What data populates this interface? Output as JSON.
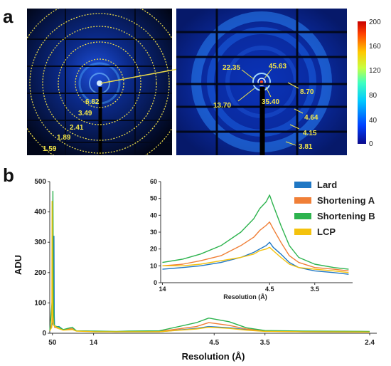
{
  "panel_a": {
    "letter": "a",
    "left_image": {
      "ring_labels": [
        "6.82",
        "3.49",
        "2.41",
        "1.89",
        "1.59"
      ]
    },
    "right_image": {
      "peak_labels": [
        "22.35",
        "45.63",
        "13.70",
        "35.40",
        "8.70",
        "4.64",
        "4.15",
        "3.81"
      ]
    },
    "colorbar": {
      "ticks": [
        "200",
        "160",
        "120",
        "80",
        "40",
        "0"
      ],
      "colors": [
        "#0a0a8c",
        "#0040ff",
        "#00c8ff",
        "#40ffc0",
        "#c8ff40",
        "#ffc800",
        "#ff4000",
        "#c80000"
      ]
    }
  },
  "panel_b": {
    "letter": "b"
  },
  "chart_data": [
    {
      "type": "line",
      "xlabel": "Resolution (Å)",
      "ylabel": "ADU",
      "x_axis_note": "reciprocal resolution axis; tick labels in Å",
      "xticks": [
        "50",
        "14",
        "4.5",
        "3.5",
        "2.4"
      ],
      "yticks": [
        "0",
        "100",
        "200",
        "300",
        "400",
        "500"
      ],
      "ylim": [
        0,
        500
      ],
      "legend_position": "top-right",
      "series": [
        {
          "name": "Lard",
          "color": "#1f77c4",
          "x": [
            60,
            50,
            45.6,
            45,
            44,
            35.4,
            30,
            22.35,
            20,
            13.7,
            10,
            8.7,
            6.5,
            5,
            4.64,
            4.15,
            3.81,
            3.5,
            3,
            2.4
          ],
          "y": [
            8,
            30,
            320,
            60,
            20,
            22,
            12,
            15,
            8,
            6,
            5,
            5,
            5,
            16,
            22,
            18,
            12,
            7,
            5,
            4
          ]
        },
        {
          "name": "Shortening A",
          "color": "#f07f37",
          "x": [
            60,
            50,
            49,
            48,
            45.6,
            44,
            35.4,
            30,
            22.35,
            20,
            13.7,
            10,
            8.7,
            6.5,
            5,
            4.64,
            4.15,
            3.81,
            3.5,
            3,
            2.4
          ],
          "y": [
            8,
            40,
            150,
            60,
            30,
            20,
            15,
            12,
            15,
            8,
            6,
            5,
            6,
            6,
            22,
            35,
            26,
            14,
            8,
            6,
            5
          ]
        },
        {
          "name": "Shortening B",
          "color": "#2db34e",
          "x": [
            60,
            50,
            48.5,
            47,
            45.6,
            45,
            35.4,
            30,
            22.35,
            20,
            13.7,
            10,
            8.7,
            6.5,
            5,
            4.64,
            4.15,
            3.81,
            3.5,
            3,
            2.4
          ],
          "y": [
            8,
            120,
            468,
            110,
            40,
            25,
            20,
            12,
            20,
            8,
            7,
            6,
            7,
            8,
            35,
            50,
            38,
            18,
            9,
            7,
            6
          ]
        },
        {
          "name": "LCP",
          "color": "#f4c20d",
          "x": [
            60,
            52,
            51,
            50,
            49,
            47,
            45.6,
            35.4,
            30,
            22.35,
            20,
            13.7,
            10,
            8.7,
            6.5,
            5,
            4.64,
            4.15,
            3.81,
            3.5,
            3,
            2.4
          ],
          "y": [
            8,
            20,
            435,
            200,
            60,
            30,
            25,
            15,
            10,
            12,
            7,
            5,
            5,
            5,
            5,
            14,
            20,
            16,
            10,
            6,
            5,
            4
          ]
        }
      ]
    },
    {
      "type": "line",
      "xlabel": "Resolution (Å)",
      "ylabel": "",
      "x_axis_note": "reciprocal resolution axis; tick labels in Å",
      "xticks": [
        "14",
        "4.5",
        "3.5"
      ],
      "yticks": [
        "0",
        "10",
        "20",
        "30",
        "40",
        "50",
        "60"
      ],
      "ylim": [
        0,
        60
      ],
      "series": [
        {
          "name": "Lard",
          "color": "#1f77c4",
          "x": [
            14,
            10,
            8,
            6.5,
            5.5,
            5,
            4.8,
            4.6,
            4.5,
            4.4,
            4.2,
            4.0,
            3.8,
            3.5,
            3.2,
            3.0
          ],
          "y": [
            8,
            9,
            10,
            12,
            15,
            18,
            20,
            22,
            24,
            21,
            17,
            12,
            9,
            7,
            6,
            5
          ]
        },
        {
          "name": "Shortening A",
          "color": "#f07f37",
          "x": [
            14,
            10,
            8,
            6.5,
            5.5,
            5,
            4.8,
            4.6,
            4.5,
            4.4,
            4.2,
            4.0,
            3.8,
            3.5,
            3.2,
            3.0
          ],
          "y": [
            10,
            11,
            13,
            16,
            22,
            27,
            31,
            34,
            36,
            32,
            24,
            16,
            12,
            9,
            8,
            7
          ]
        },
        {
          "name": "Shortening B",
          "color": "#2db34e",
          "x": [
            14,
            10,
            8,
            6.5,
            5.5,
            5,
            4.8,
            4.6,
            4.5,
            4.4,
            4.2,
            4.0,
            3.8,
            3.5,
            3.2,
            3.0
          ],
          "y": [
            12,
            14,
            17,
            22,
            30,
            38,
            44,
            48,
            52,
            46,
            34,
            22,
            15,
            11,
            9,
            8
          ]
        },
        {
          "name": "LCP",
          "color": "#f4c20d",
          "x": [
            14,
            10,
            8,
            6.5,
            5.5,
            5,
            4.8,
            4.6,
            4.5,
            4.4,
            4.2,
            4.0,
            3.8,
            3.5,
            3.2,
            3.0
          ],
          "y": [
            10,
            10,
            11,
            13,
            15,
            17,
            19,
            20,
            21,
            19,
            15,
            11,
            9,
            8,
            7,
            6
          ]
        }
      ]
    }
  ]
}
